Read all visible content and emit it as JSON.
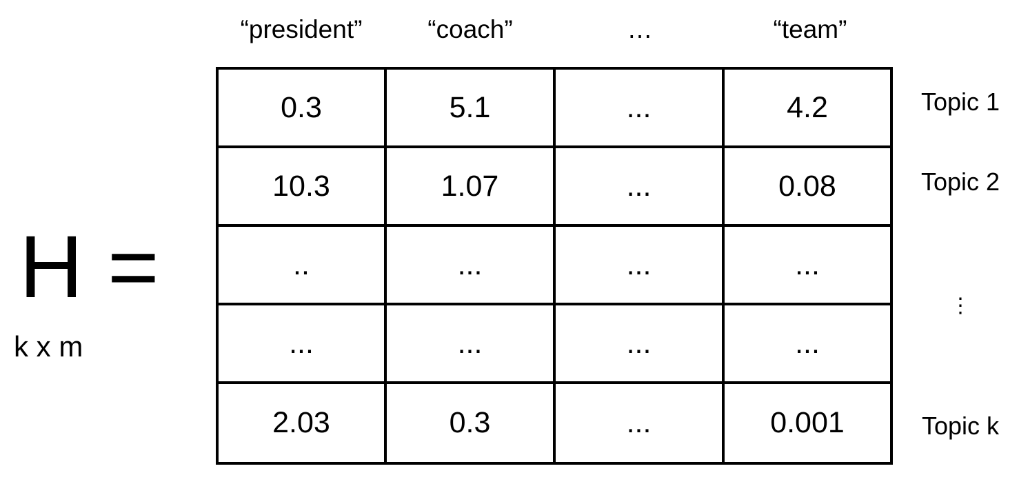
{
  "matrix": {
    "symbol": "H =",
    "dimensions": "k x m"
  },
  "columns": [
    "“president”",
    "“coach”",
    "…",
    "“team”"
  ],
  "rows": [
    {
      "label": "Topic 1",
      "values": [
        "0.3",
        "5.1",
        "...",
        "4.2"
      ]
    },
    {
      "label": "Topic 2",
      "values": [
        "10.3",
        "1.07",
        "...",
        "0.08"
      ]
    },
    {
      "label": "",
      "values": [
        "..",
        "...",
        "...",
        "..."
      ]
    },
    {
      "label": "⋮",
      "values": [
        "...",
        "...",
        "...",
        "..."
      ]
    },
    {
      "label": "Topic k",
      "values": [
        "2.03",
        "0.3",
        "...",
        "0.001"
      ]
    }
  ]
}
